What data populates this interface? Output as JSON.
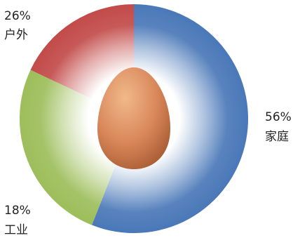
{
  "chart_data": {
    "type": "pie",
    "style": "donut",
    "categories": [
      "家庭",
      "户外",
      "工业"
    ],
    "values": [
      56,
      26,
      18
    ],
    "value_labels": [
      "56%",
      "26%",
      "18%"
    ],
    "colors": [
      "#4a78b8",
      "#9dbe5b",
      "#c24b49"
    ],
    "center_object": "egg",
    "legend": "none"
  }
}
